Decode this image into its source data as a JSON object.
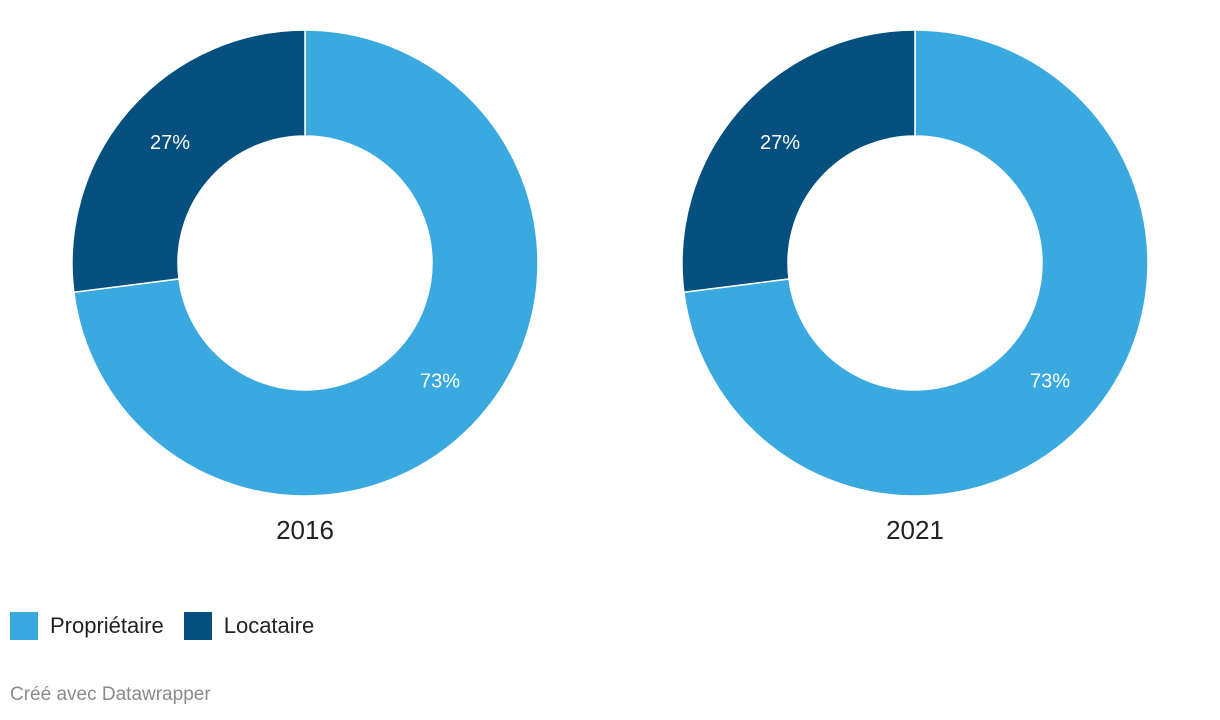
{
  "chart_data": [
    {
      "type": "pie",
      "variant": "donut",
      "title": "2016",
      "categories": [
        "Propriétaire",
        "Locataire"
      ],
      "values": [
        73,
        27
      ],
      "value_labels": [
        "73%",
        "27%"
      ],
      "colors": [
        "#3aa9e0",
        "#05507f"
      ]
    },
    {
      "type": "pie",
      "variant": "donut",
      "title": "2021",
      "categories": [
        "Propriétaire",
        "Locataire"
      ],
      "values": [
        73,
        27
      ],
      "value_labels": [
        "73%",
        "27%"
      ],
      "colors": [
        "#3aa9e0",
        "#05507f"
      ]
    }
  ],
  "legend": {
    "placement": "bottom-left",
    "items": [
      {
        "label": "Propriétaire",
        "color": "#3aa9e0"
      },
      {
        "label": "Locataire",
        "color": "#05507f"
      }
    ]
  },
  "credit": "Créé avec Datawrapper"
}
